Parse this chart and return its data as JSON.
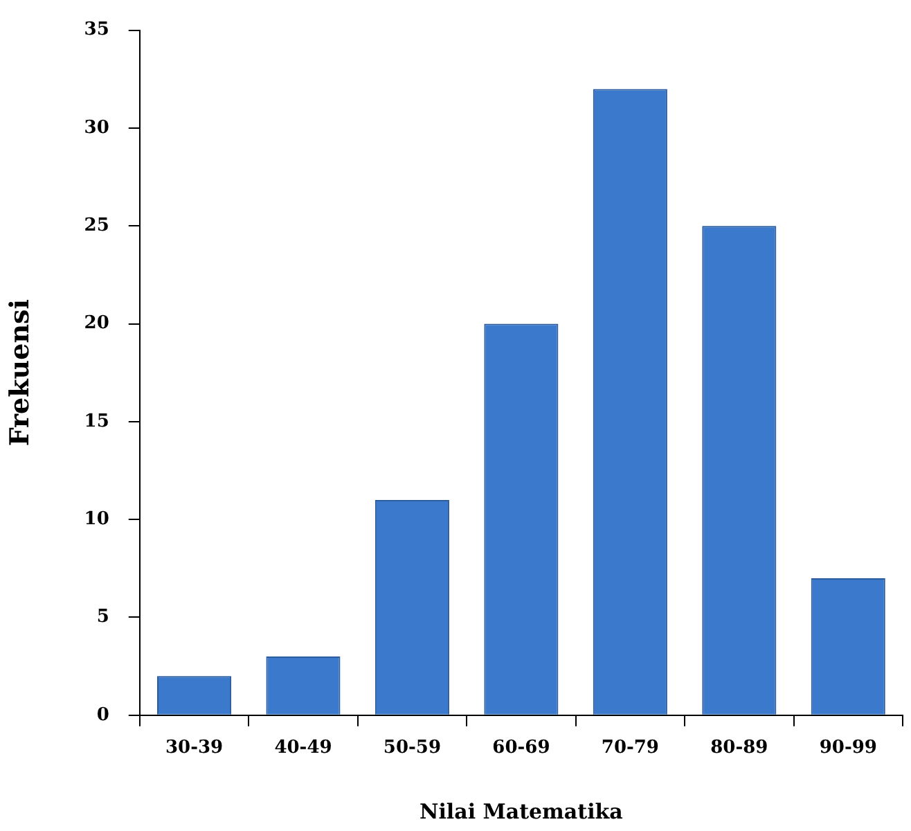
{
  "chart_data": {
    "type": "bar",
    "xlabel": "Nilai Matematika",
    "ylabel": "Frekuensi",
    "categories": [
      "30-39",
      "40-49",
      "50-59",
      "60-69",
      "70-79",
      "80-89",
      "90-99"
    ],
    "values": [
      2,
      3,
      11,
      20,
      32,
      25,
      7
    ],
    "color": "#3b79cc",
    "ylim": [
      0,
      35
    ],
    "yticks": [
      0,
      5,
      10,
      15,
      20,
      25,
      30,
      35
    ],
    "grid": false,
    "legend": false
  }
}
